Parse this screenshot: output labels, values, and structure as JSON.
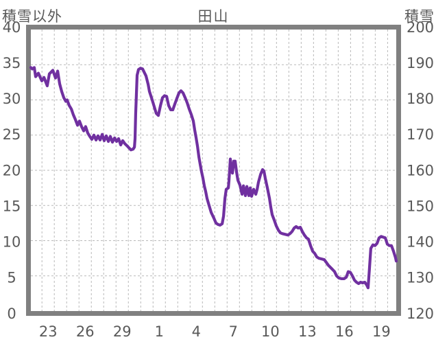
{
  "chart_data": {
    "type": "line",
    "title": "田山",
    "left_axis": {
      "label": "積雪以外",
      "min": 0,
      "max": 40,
      "tick_step": 5,
      "ticks": [
        40,
        35,
        30,
        25,
        20,
        15,
        10,
        5,
        0
      ]
    },
    "right_axis": {
      "label": "積雪",
      "min": 120,
      "max": 200,
      "tick_step": 10,
      "ticks": [
        200,
        190,
        180,
        170,
        160,
        150,
        140,
        130,
        120
      ]
    },
    "x_axis": {
      "tick_labels": [
        "23",
        "26",
        "29",
        "1",
        "4",
        "7",
        "10",
        "13",
        "16",
        "19"
      ],
      "tick_positions_days": [
        23,
        26,
        29,
        32,
        35,
        38,
        41,
        44,
        47,
        50
      ],
      "domain_days": [
        21.6,
        51.2
      ],
      "day_gridline_first": 22.5,
      "day_gridline_last": 50.5,
      "gridline_interval_days": 1
    },
    "grid": true,
    "legend": "none",
    "colors": {
      "line": "#7030A0",
      "border": "#808080",
      "grid": "#b8b8b8",
      "text": "#595959",
      "background": "#ffffff"
    },
    "series": [
      {
        "name": "積雪",
        "axis": "right",
        "units": "cm",
        "points": [
          [
            21.6,
            189.2
          ],
          [
            21.71,
            188.8
          ],
          [
            21.88,
            189.2
          ],
          [
            21.99,
            186.6
          ],
          [
            22.21,
            187.6
          ],
          [
            22.49,
            185.4
          ],
          [
            22.66,
            186.4
          ],
          [
            22.93,
            184.0
          ],
          [
            23.1,
            187.4
          ],
          [
            23.38,
            188.4
          ],
          [
            23.6,
            186.2
          ],
          [
            23.77,
            188.2
          ],
          [
            23.93,
            184.6
          ],
          [
            24.1,
            182.4
          ],
          [
            24.27,
            180.6
          ],
          [
            24.43,
            179.6
          ],
          [
            24.54,
            180.0
          ],
          [
            24.71,
            178.4
          ],
          [
            24.88,
            177.4
          ],
          [
            25.04,
            175.8
          ],
          [
            25.21,
            174.4
          ],
          [
            25.38,
            172.8
          ],
          [
            25.54,
            174.0
          ],
          [
            25.71,
            172.4
          ],
          [
            25.88,
            171.2
          ],
          [
            26.04,
            172.4
          ],
          [
            26.21,
            170.6
          ],
          [
            26.38,
            169.6
          ],
          [
            26.54,
            168.8
          ],
          [
            26.71,
            170.0
          ],
          [
            26.88,
            168.6
          ],
          [
            27.04,
            169.8
          ],
          [
            27.21,
            168.6
          ],
          [
            27.38,
            170.2
          ],
          [
            27.54,
            168.4
          ],
          [
            27.71,
            169.8
          ],
          [
            27.88,
            168.2
          ],
          [
            28.04,
            169.6
          ],
          [
            28.21,
            168.0
          ],
          [
            28.38,
            169.2
          ],
          [
            28.54,
            168.2
          ],
          [
            28.71,
            169.0
          ],
          [
            28.88,
            167.2
          ],
          [
            29.04,
            168.4
          ],
          [
            29.21,
            167.6
          ],
          [
            29.38,
            167.0
          ],
          [
            29.54,
            166.4
          ],
          [
            29.71,
            165.8
          ],
          [
            29.88,
            166.0
          ],
          [
            29.99,
            166.6
          ],
          [
            30.04,
            169.0
          ],
          [
            30.09,
            176.0
          ],
          [
            30.21,
            187.0
          ],
          [
            30.32,
            188.6
          ],
          [
            30.48,
            189.0
          ],
          [
            30.65,
            188.8
          ],
          [
            30.82,
            187.6
          ],
          [
            30.93,
            186.8
          ],
          [
            31.1,
            184.4
          ],
          [
            31.21,
            182.4
          ],
          [
            31.43,
            180.0
          ],
          [
            31.6,
            178.0
          ],
          [
            31.76,
            176.2
          ],
          [
            31.93,
            175.6
          ],
          [
            32.1,
            178.4
          ],
          [
            32.26,
            180.6
          ],
          [
            32.43,
            181.2
          ],
          [
            32.6,
            181.0
          ],
          [
            32.76,
            178.4
          ],
          [
            32.93,
            177.2
          ],
          [
            33.1,
            177.2
          ],
          [
            33.26,
            178.8
          ],
          [
            33.43,
            180.4
          ],
          [
            33.6,
            182.0
          ],
          [
            33.76,
            182.6
          ],
          [
            33.93,
            182.0
          ],
          [
            34.1,
            180.6
          ],
          [
            34.26,
            179.2
          ],
          [
            34.43,
            177.4
          ],
          [
            34.6,
            175.8
          ],
          [
            34.76,
            174.0
          ],
          [
            34.87,
            171.6
          ],
          [
            34.99,
            169.2
          ],
          [
            35.1,
            166.8
          ],
          [
            35.21,
            163.8
          ],
          [
            35.32,
            161.6
          ],
          [
            35.43,
            159.6
          ],
          [
            35.54,
            157.8
          ],
          [
            35.65,
            155.6
          ],
          [
            35.76,
            154.0
          ],
          [
            35.87,
            152.0
          ],
          [
            36.04,
            150.0
          ],
          [
            36.21,
            148.0
          ],
          [
            36.43,
            146.4
          ],
          [
            36.6,
            145.0
          ],
          [
            36.76,
            144.6
          ],
          [
            36.93,
            144.4
          ],
          [
            37.1,
            144.8
          ],
          [
            37.21,
            147.0
          ],
          [
            37.32,
            152.0
          ],
          [
            37.43,
            154.6
          ],
          [
            37.6,
            155.0
          ],
          [
            37.65,
            157.0
          ],
          [
            37.76,
            163.2
          ],
          [
            37.87,
            159.6
          ],
          [
            37.93,
            159.2
          ],
          [
            38.04,
            162.6
          ],
          [
            38.15,
            162.6
          ],
          [
            38.26,
            159.6
          ],
          [
            38.37,
            157.2
          ],
          [
            38.54,
            155.8
          ],
          [
            38.71,
            153.2
          ],
          [
            38.82,
            155.6
          ],
          [
            38.98,
            152.8
          ],
          [
            39.1,
            155.4
          ],
          [
            39.26,
            152.8
          ],
          [
            39.37,
            155.0
          ],
          [
            39.48,
            152.6
          ],
          [
            39.65,
            154.6
          ],
          [
            39.82,
            153.2
          ],
          [
            39.93,
            154.6
          ],
          [
            40.04,
            156.6
          ],
          [
            40.21,
            158.8
          ],
          [
            40.37,
            160.2
          ],
          [
            40.48,
            159.8
          ],
          [
            40.59,
            157.8
          ],
          [
            40.76,
            155.0
          ],
          [
            40.93,
            152.0
          ],
          [
            41.04,
            149.4
          ],
          [
            41.15,
            147.4
          ],
          [
            41.32,
            145.8
          ],
          [
            41.48,
            144.2
          ],
          [
            41.65,
            143.0
          ],
          [
            41.82,
            142.2
          ],
          [
            41.98,
            142.0
          ],
          [
            42.21,
            141.8
          ],
          [
            42.43,
            141.6
          ],
          [
            42.59,
            142.0
          ],
          [
            42.76,
            142.6
          ],
          [
            42.93,
            143.6
          ],
          [
            43.09,
            144.0
          ],
          [
            43.26,
            143.6
          ],
          [
            43.43,
            143.8
          ],
          [
            43.59,
            142.6
          ],
          [
            43.76,
            141.6
          ],
          [
            43.93,
            140.8
          ],
          [
            44.09,
            140.4
          ],
          [
            44.26,
            138.6
          ],
          [
            44.43,
            137.0
          ],
          [
            44.59,
            136.4
          ],
          [
            44.76,
            135.4
          ],
          [
            44.93,
            135.0
          ],
          [
            45.15,
            134.8
          ],
          [
            45.37,
            134.6
          ],
          [
            45.54,
            133.8
          ],
          [
            45.7,
            133.0
          ],
          [
            45.87,
            132.4
          ],
          [
            46.04,
            131.8
          ],
          [
            46.2,
            131.2
          ],
          [
            46.37,
            130.0
          ],
          [
            46.54,
            129.4
          ],
          [
            46.76,
            129.2
          ],
          [
            46.98,
            129.2
          ],
          [
            47.15,
            129.6
          ],
          [
            47.31,
            131.2
          ],
          [
            47.48,
            131.0
          ],
          [
            47.65,
            130.0
          ],
          [
            47.81,
            128.8
          ],
          [
            47.98,
            128.2
          ],
          [
            48.15,
            127.8
          ],
          [
            48.31,
            128.2
          ],
          [
            48.48,
            128.0
          ],
          [
            48.65,
            128.2
          ],
          [
            48.81,
            127.4
          ],
          [
            48.92,
            126.6
          ],
          [
            49.03,
            132.0
          ],
          [
            49.14,
            137.8
          ],
          [
            49.31,
            138.8
          ],
          [
            49.48,
            138.6
          ],
          [
            49.64,
            139.2
          ],
          [
            49.81,
            140.8
          ],
          [
            49.98,
            141.2
          ],
          [
            50.14,
            141.0
          ],
          [
            50.31,
            140.8
          ],
          [
            50.48,
            139.0
          ],
          [
            50.64,
            138.6
          ],
          [
            50.81,
            138.6
          ],
          [
            50.98,
            137.0
          ],
          [
            51.14,
            135.2
          ],
          [
            51.2,
            134.2
          ]
        ]
      }
    ]
  }
}
